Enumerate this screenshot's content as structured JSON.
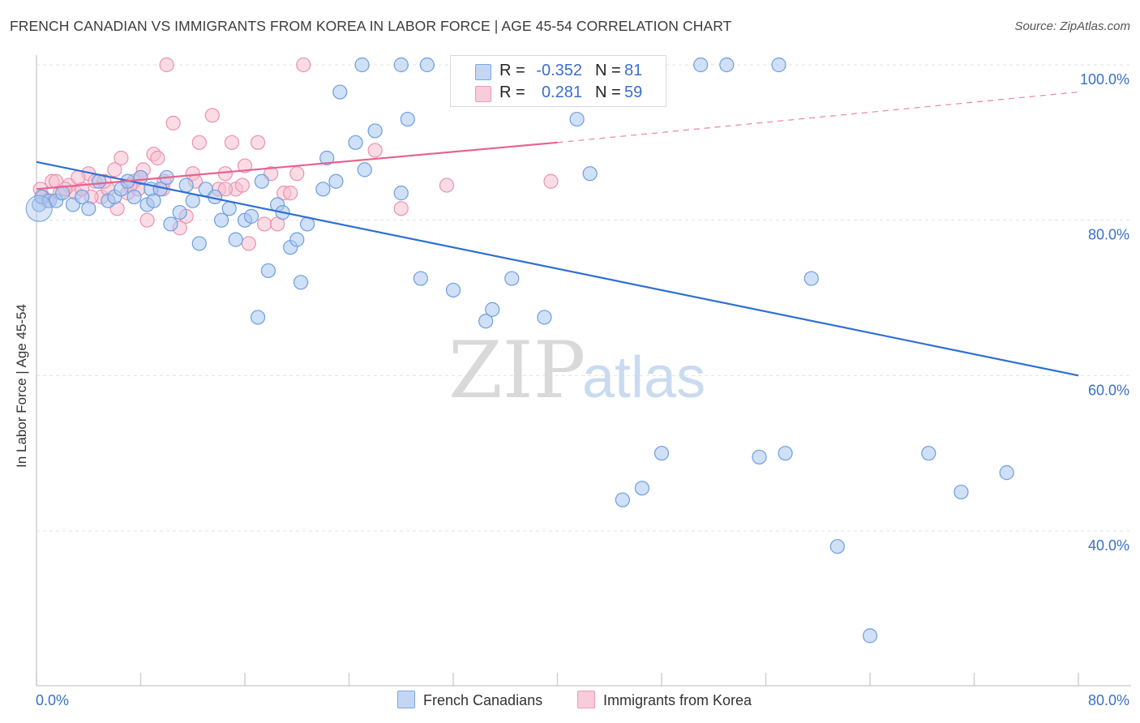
{
  "title": "FRENCH CANADIAN VS IMMIGRANTS FROM KOREA IN LABOR FORCE | AGE 45-54 CORRELATION CHART",
  "source": "Source: ZipAtlas.com",
  "watermark": {
    "zip": "ZIP",
    "atlas": "atlas"
  },
  "legend": {
    "rows": [
      {
        "r_label": "R =",
        "r_value": "-0.352",
        "n_label": "N =",
        "n_value": "81"
      },
      {
        "r_label": "R =",
        "r_value": "0.281",
        "n_label": "N =",
        "n_value": "59"
      }
    ]
  },
  "bottom_legend": {
    "series1": "French Canadians",
    "series2": "Immigrants from Korea"
  },
  "colors": {
    "blue_fill": "#aac7f0",
    "blue_stroke": "#6b9ee0",
    "blue_line": "#2f6fd0",
    "pink_fill": "#f6c0d0",
    "pink_stroke": "#ee8fb0",
    "pink_line": "#e8628f",
    "axis_text": "#3a6fcc",
    "grid": "#e2e2e2"
  },
  "chart_data": {
    "type": "scatter",
    "title": "FRENCH CANADIAN VS IMMIGRANTS FROM KOREA IN LABOR FORCE | AGE 45-54 CORRELATION CHART",
    "xlabel": "",
    "ylabel": "In Labor Force | Age 45-54",
    "xlim": [
      0,
      80
    ],
    "ylim": [
      20,
      101
    ],
    "x_tick_labels": [
      "0.0%",
      "80.0%"
    ],
    "y_ticks": [
      40,
      60,
      80,
      100
    ],
    "y_tick_labels": [
      "40.0%",
      "60.0%",
      "80.0%",
      "100.0%"
    ],
    "grid": true,
    "legend_position": "top-center",
    "series": [
      {
        "name": "French Canadians",
        "x": [
          0.2,
          0.4,
          1.0,
          1.5,
          2.0,
          2.8,
          3.5,
          4.0,
          4.8,
          5.5,
          6.0,
          6.5,
          7.0,
          7.5,
          8.0,
          8.5,
          8.8,
          9.0,
          9.5,
          10.0,
          10.3,
          11.0,
          11.5,
          12.0,
          12.5,
          13.0,
          13.7,
          14.2,
          14.8,
          15.3,
          16.0,
          16.5,
          17.0,
          17.3,
          17.8,
          18.5,
          18.9,
          19.5,
          20.0,
          20.3,
          20.8,
          22.0,
          22.3,
          23.0,
          23.3,
          24.5,
          25.0,
          25.2,
          26.0,
          28.0,
          28.5,
          28.0,
          29.5,
          30.0,
          32.0,
          33.0,
          34.5,
          35.0,
          36.5,
          37.5,
          38.0,
          39.0,
          40.0,
          41.5,
          42.5,
          46.5,
          51.0,
          53.0,
          59.5,
          61.5,
          64.0,
          74.5,
          57.5,
          48.0,
          45.0,
          46.5,
          71.0,
          68.5,
          55.5,
          44.5,
          57.0
        ],
        "y": [
          82,
          83,
          82.5,
          82.5,
          83.5,
          82.0,
          83.0,
          81.5,
          85.0,
          82.5,
          83.0,
          84.0,
          85.0,
          83.0,
          85.5,
          82.0,
          84.0,
          82.5,
          84.0,
          85.5,
          79.5,
          81.0,
          84.5,
          82.5,
          77.0,
          84.0,
          83.0,
          80.0,
          81.5,
          77.5,
          80.0,
          80.5,
          67.5,
          85.0,
          73.5,
          82.0,
          81.0,
          76.5,
          77.5,
          72.0,
          79.5,
          84.0,
          88.0,
          85.0,
          96.5,
          90.0,
          100.0,
          86.5,
          91.5,
          83.5,
          93.0,
          100.0,
          72.5,
          100.0,
          71.0,
          100.0,
          67.0,
          68.5,
          72.5,
          100.0,
          100.0,
          67.5,
          100.0,
          93.0,
          86.0,
          100.0,
          100.0,
          100.0,
          72.5,
          38.0,
          26.5,
          47.5,
          50.0,
          50.0,
          44.0,
          45.5,
          45.0,
          50.0,
          49.5,
          100.0,
          100.0
        ]
      },
      {
        "name": "Immigrants from Korea",
        "x": [
          0.3,
          0.8,
          1.2,
          1.8,
          2.5,
          3.0,
          3.5,
          4.0,
          4.5,
          5.0,
          5.5,
          6.0,
          6.5,
          7.0,
          7.5,
          7.8,
          8.2,
          8.5,
          9.0,
          9.3,
          9.7,
          10.0,
          10.5,
          11.0,
          11.5,
          12.0,
          12.5,
          13.5,
          14.0,
          14.5,
          15.0,
          15.3,
          16.0,
          16.3,
          17.0,
          17.5,
          18.0,
          18.5,
          19.0,
          20.0,
          20.5,
          19.5,
          26.0,
          28.0,
          31.5,
          39.5,
          0.5,
          1.5,
          2.2,
          3.2,
          4.2,
          5.2,
          6.2,
          7.2,
          8.0,
          9.8,
          12.2,
          14.5,
          15.8
        ],
        "y": [
          84,
          82.5,
          85.0,
          83.5,
          84.5,
          83.5,
          84.0,
          86.0,
          85.0,
          83.0,
          84.0,
          86.5,
          88.0,
          83.5,
          85.0,
          84.0,
          86.5,
          80.0,
          88.5,
          88.0,
          84.0,
          100.0,
          92.5,
          79.0,
          80.5,
          86.0,
          90.0,
          93.5,
          84.0,
          86.0,
          90.0,
          84.0,
          87.0,
          77.0,
          90.0,
          79.5,
          86.0,
          79.5,
          83.5,
          86.0,
          100.0,
          83.5,
          89.0,
          81.5,
          84.5,
          85.0,
          83.0,
          85.0,
          84.0,
          85.5,
          83.0,
          85.0,
          81.5,
          84.5,
          85.5,
          85.0,
          85.0,
          84.0,
          84.5
        ]
      }
    ],
    "trendlines": [
      {
        "name": "French Canadians",
        "x": [
          0,
          80
        ],
        "y": [
          87.5,
          60.0
        ],
        "style": "solid"
      },
      {
        "name": "Immigrants from Korea",
        "x_solid": [
          0,
          40
        ],
        "y_solid": [
          84.0,
          90.0
        ],
        "x_dashed": [
          40,
          80
        ],
        "y_dashed": [
          90.0,
          96.5
        ]
      }
    ]
  }
}
